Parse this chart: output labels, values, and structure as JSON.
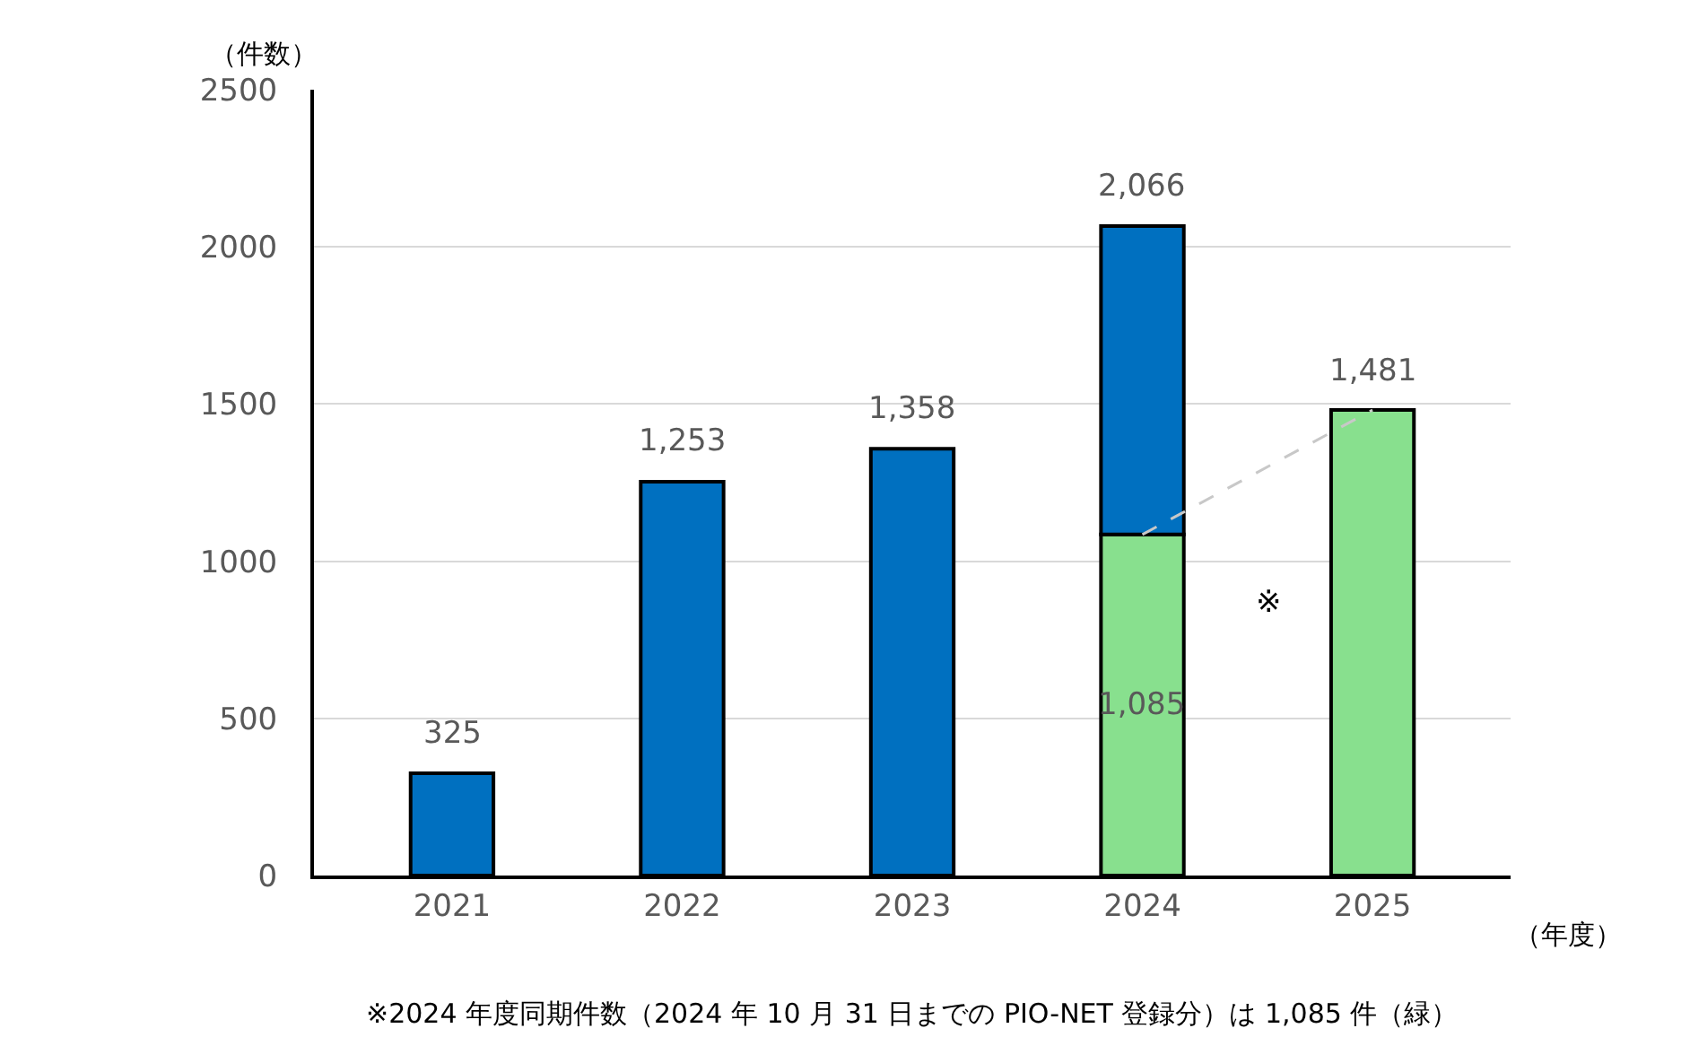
{
  "chart_data": {
    "type": "bar",
    "stacked": true,
    "ylabel": "（件数）",
    "xlabel": "（年度）",
    "categories": [
      "2021",
      "2022",
      "2023",
      "2024",
      "2025"
    ],
    "ylim": [
      0,
      2500
    ],
    "yticks": [
      0,
      500,
      1000,
      1500,
      2000,
      2500
    ],
    "grid": "y",
    "series": [
      {
        "color": "#88e08e",
        "values": [
          null,
          null,
          null,
          1085,
          1481
        ],
        "value_labels": [
          null,
          null,
          null,
          "1,085",
          null
        ]
      },
      {
        "color": "#0070c0",
        "values": [
          325,
          1253,
          1358,
          981,
          null
        ]
      },
      {
        "type": "line",
        "color": "#c8c8c8",
        "line_style": "dashed",
        "marker": "none",
        "values": [
          null,
          null,
          null,
          1085,
          1481
        ]
      }
    ],
    "totals": [
      "325",
      "1,253",
      "1,358",
      "2,066",
      "1,481"
    ],
    "annotations": [
      "※",
      "※2024 年度同期件数（2024 年 10 月 31 日までの PIO-NET 登録分）は 1,085 件（緑）"
    ]
  }
}
